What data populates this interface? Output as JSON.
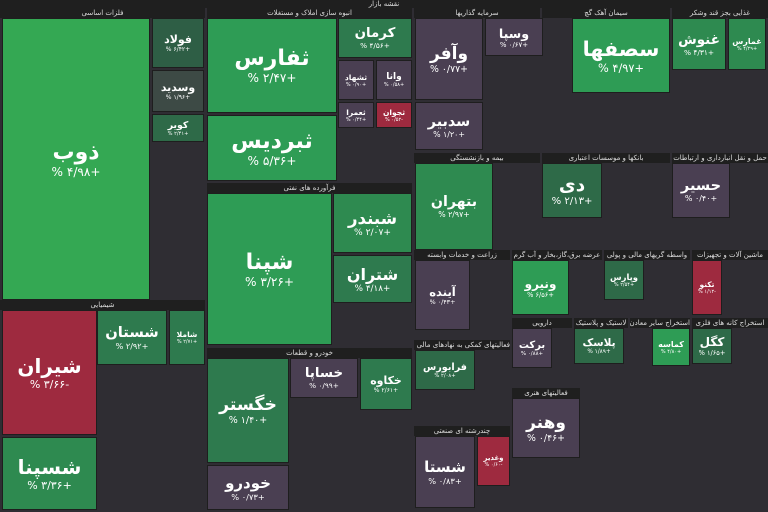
{
  "title": "نقشه بازار",
  "sectors": [
    {
      "name": "فلزات اساسی",
      "tiles": [
        {
          "label": "ذوب",
          "change": "+۴/۹۸ %",
          "color": "#34a853"
        },
        {
          "label": "فولاد",
          "change": "+۶/۴۲ %",
          "color": "#2e5e45"
        },
        {
          "label": "وسدید",
          "change": "+۱/۹۶ %",
          "color": "#3d4a45"
        },
        {
          "label": "کویر",
          "change": "+۲/۴۱ %",
          "color": "#2e6a48"
        }
      ]
    },
    {
      "name": "انبوه سازی املاک و مستغلات",
      "tiles": [
        {
          "label": "ثفارس",
          "change": "+۲/۴۷ %",
          "color": "#2e9c55"
        },
        {
          "label": "ثبردیس",
          "change": "+۵/۳۶ %",
          "color": "#2e9c55"
        },
        {
          "label": "کرمان",
          "change": "+۴/۵۶ %",
          "color": "#2e7a4e"
        },
        {
          "label": "ثشهاد",
          "change": "+۰/۹۰ %",
          "color": "#4a3f52"
        },
        {
          "label": "وانا",
          "change": "+۰/۵۸ %",
          "color": "#4a3f52"
        },
        {
          "label": "ثعمرا",
          "change": "+۰/۴۴ %",
          "color": "#4a3f52"
        },
        {
          "label": "ثجوان",
          "change": "-۰/۵۲ %",
          "color": "#9e2a3f"
        }
      ]
    },
    {
      "name": "سرمایه گذاریها",
      "tiles": [
        {
          "label": "وآفر",
          "change": "+۰/۷۷ %",
          "color": "#4a3f52"
        },
        {
          "label": "سدبیر",
          "change": "+۱/۲۰ %",
          "color": "#4a3f52"
        },
        {
          "label": "وسپا",
          "change": "+۰/۶۷ %",
          "color": "#4a3f52"
        }
      ]
    },
    {
      "name": "سیمان آهک گچ",
      "tiles": [
        {
          "label": "سصفها",
          "change": "+۴/۹۷ %",
          "color": "#2e9c55"
        }
      ]
    },
    {
      "name": "غذایی بجز قند وشکر",
      "tiles": [
        {
          "label": "غنوش",
          "change": "+۴/۳۱ %",
          "color": "#2e8a50"
        },
        {
          "label": "غمارس",
          "change": "+۴/۲۹ %",
          "color": "#2e8a50"
        }
      ]
    },
    {
      "name": "فرآورده های نفتی",
      "tiles": [
        {
          "label": "شپنا",
          "change": "+۳/۲۶ %",
          "color": "#2e9c55"
        },
        {
          "label": "شبندر",
          "change": "+۲/۰۷ %",
          "color": "#2e8a50"
        },
        {
          "label": "شتران",
          "change": "+۴/۱۸ %",
          "color": "#2e7a4e"
        }
      ]
    },
    {
      "name": "شیمیایی",
      "tiles": [
        {
          "label": "شیران",
          "change": "-۳/۶۶ %",
          "color": "#9e2a3f"
        },
        {
          "label": "شستان",
          "change": "+۲/۹۲ %",
          "color": "#2e7a4e"
        },
        {
          "label": "شسپنا",
          "change": "+۳/۳۶ %",
          "color": "#2e8a50"
        },
        {
          "label": "شاملا",
          "change": "+۲/۷۱ %",
          "color": "#2e7a4e"
        }
      ]
    },
    {
      "name": "خودرو و قطعات",
      "tiles": [
        {
          "label": "خگستر",
          "change": "+۱/۴۰ %",
          "color": "#2e7a4e"
        },
        {
          "label": "خساپا",
          "change": "+۰/۹۹ %",
          "color": "#4a3f52"
        },
        {
          "label": "خکاوه",
          "change": "+۲/۶۱ %",
          "color": "#2e7a4e"
        },
        {
          "label": "خودرو",
          "change": "+۰/۷۳ %",
          "color": "#4a3f52"
        }
      ]
    },
    {
      "name": "بیمه و بازنشستگی",
      "tiles": [
        {
          "label": "بتهران",
          "change": "+۲/۹۷ %",
          "color": "#2e8a50"
        }
      ]
    },
    {
      "name": "بانکها و موسسات اعتباری",
      "tiles": [
        {
          "label": "دی",
          "change": "+۲/۱۳ %",
          "color": "#2e6a48"
        }
      ]
    },
    {
      "name": "حمل و نقل انبارداری و ارتباطات",
      "tiles": [
        {
          "label": "حسیر",
          "change": "+۰/۴۰ %",
          "color": "#4a3f52"
        }
      ]
    },
    {
      "name": "زراعت و خدمات وابسته",
      "tiles": [
        {
          "label": "آینده",
          "change": "+۰/۴۳ %",
          "color": "#4a3f52"
        }
      ]
    },
    {
      "name": "عرضه برق،گاز،بخار و آب گرم",
      "tiles": [
        {
          "label": "ونیرو",
          "change": "+۶/۵۶ %",
          "color": "#2e9c55"
        }
      ]
    },
    {
      "name": "واسطه گریهای مالی و پولی",
      "tiles": [
        {
          "label": "وپارس",
          "change": "+۲/۵۴ %",
          "color": "#2e6a48"
        }
      ]
    },
    {
      "name": "ماشین آلات و تجهیزات",
      "tiles": [
        {
          "label": "تکنو",
          "change": "-۱/۱۲ %",
          "color": "#9e2a3f"
        }
      ]
    },
    {
      "name": "فعالیتهای کمکی به نهادهای مالی واسط",
      "tiles": [
        {
          "label": "فرابورس",
          "change": "+۲/۰۸ %",
          "color": "#2e6a48"
        }
      ]
    },
    {
      "name": "دارویی",
      "tiles": [
        {
          "label": "برکت",
          "change": "+۰/۸۸ %",
          "color": "#4a3f52"
        }
      ]
    },
    {
      "name": "لاستیک و پلاستیک",
      "tiles": [
        {
          "label": "پلاسک",
          "change": "+۱/۸۹ %",
          "color": "#2e6a48"
        }
      ]
    },
    {
      "name": "استخراج سایر معادن",
      "tiles": [
        {
          "label": "کماسه",
          "change": "+۴/۸۰ %",
          "color": "#2e9c55"
        }
      ]
    },
    {
      "name": "استخراج کانه های فلزی",
      "tiles": [
        {
          "label": "کگل",
          "change": "+۱/۶۵ %",
          "color": "#2e6a48"
        }
      ]
    },
    {
      "name": "فعالیتهای هنری",
      "tiles": [
        {
          "label": "وهنر",
          "change": "+۰/۴۶ %",
          "color": "#4a3f52"
        }
      ]
    },
    {
      "name": "چندرشته ای صنعتی",
      "tiles": [
        {
          "label": "شستا",
          "change": "+۰/۸۳ %",
          "color": "#4a3f52"
        },
        {
          "label": "وغدیر",
          "change": "-۰/۶۰ %",
          "color": "#9e2a3f"
        }
      ]
    }
  ]
}
